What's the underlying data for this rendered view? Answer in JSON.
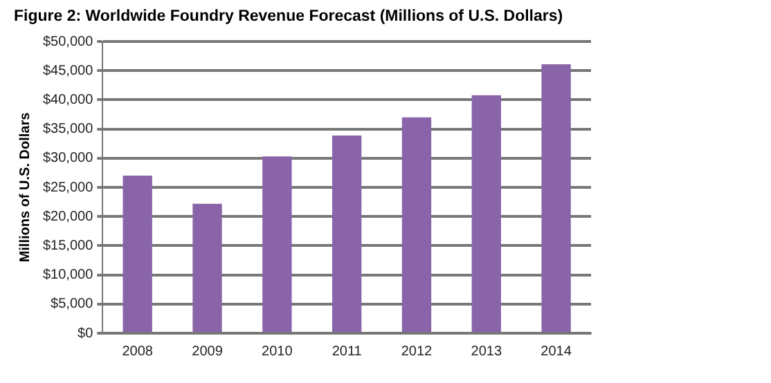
{
  "chart_data": {
    "type": "bar",
    "title": "Figure 2: Worldwide Foundry Revenue Forecast (Millions of U.S. Dollars)",
    "ylabel": "Millions of U.S. Dollars",
    "categories": [
      "2008",
      "2009",
      "2010",
      "2011",
      "2012",
      "2013",
      "2014"
    ],
    "values": [
      27000,
      22200,
      30300,
      33900,
      37000,
      40800,
      46100
    ],
    "color": "#8a64a8",
    "ylim": [
      0,
      50000
    ],
    "yticks": [
      {
        "value": 0,
        "label": "$0"
      },
      {
        "value": 5000,
        "label": "$5,000"
      },
      {
        "value": 10000,
        "label": "$10,000"
      },
      {
        "value": 15000,
        "label": "$15,000"
      },
      {
        "value": 20000,
        "label": "$20,000"
      },
      {
        "value": 25000,
        "label": "$25,000"
      },
      {
        "value": 30000,
        "label": "$30,000"
      },
      {
        "value": 35000,
        "label": "$35,000"
      },
      {
        "value": 40000,
        "label": "$40,000"
      },
      {
        "value": 45000,
        "label": "$45,000"
      },
      {
        "value": 50000,
        "label": "$50,000"
      }
    ],
    "grid": "y",
    "legend": false
  }
}
